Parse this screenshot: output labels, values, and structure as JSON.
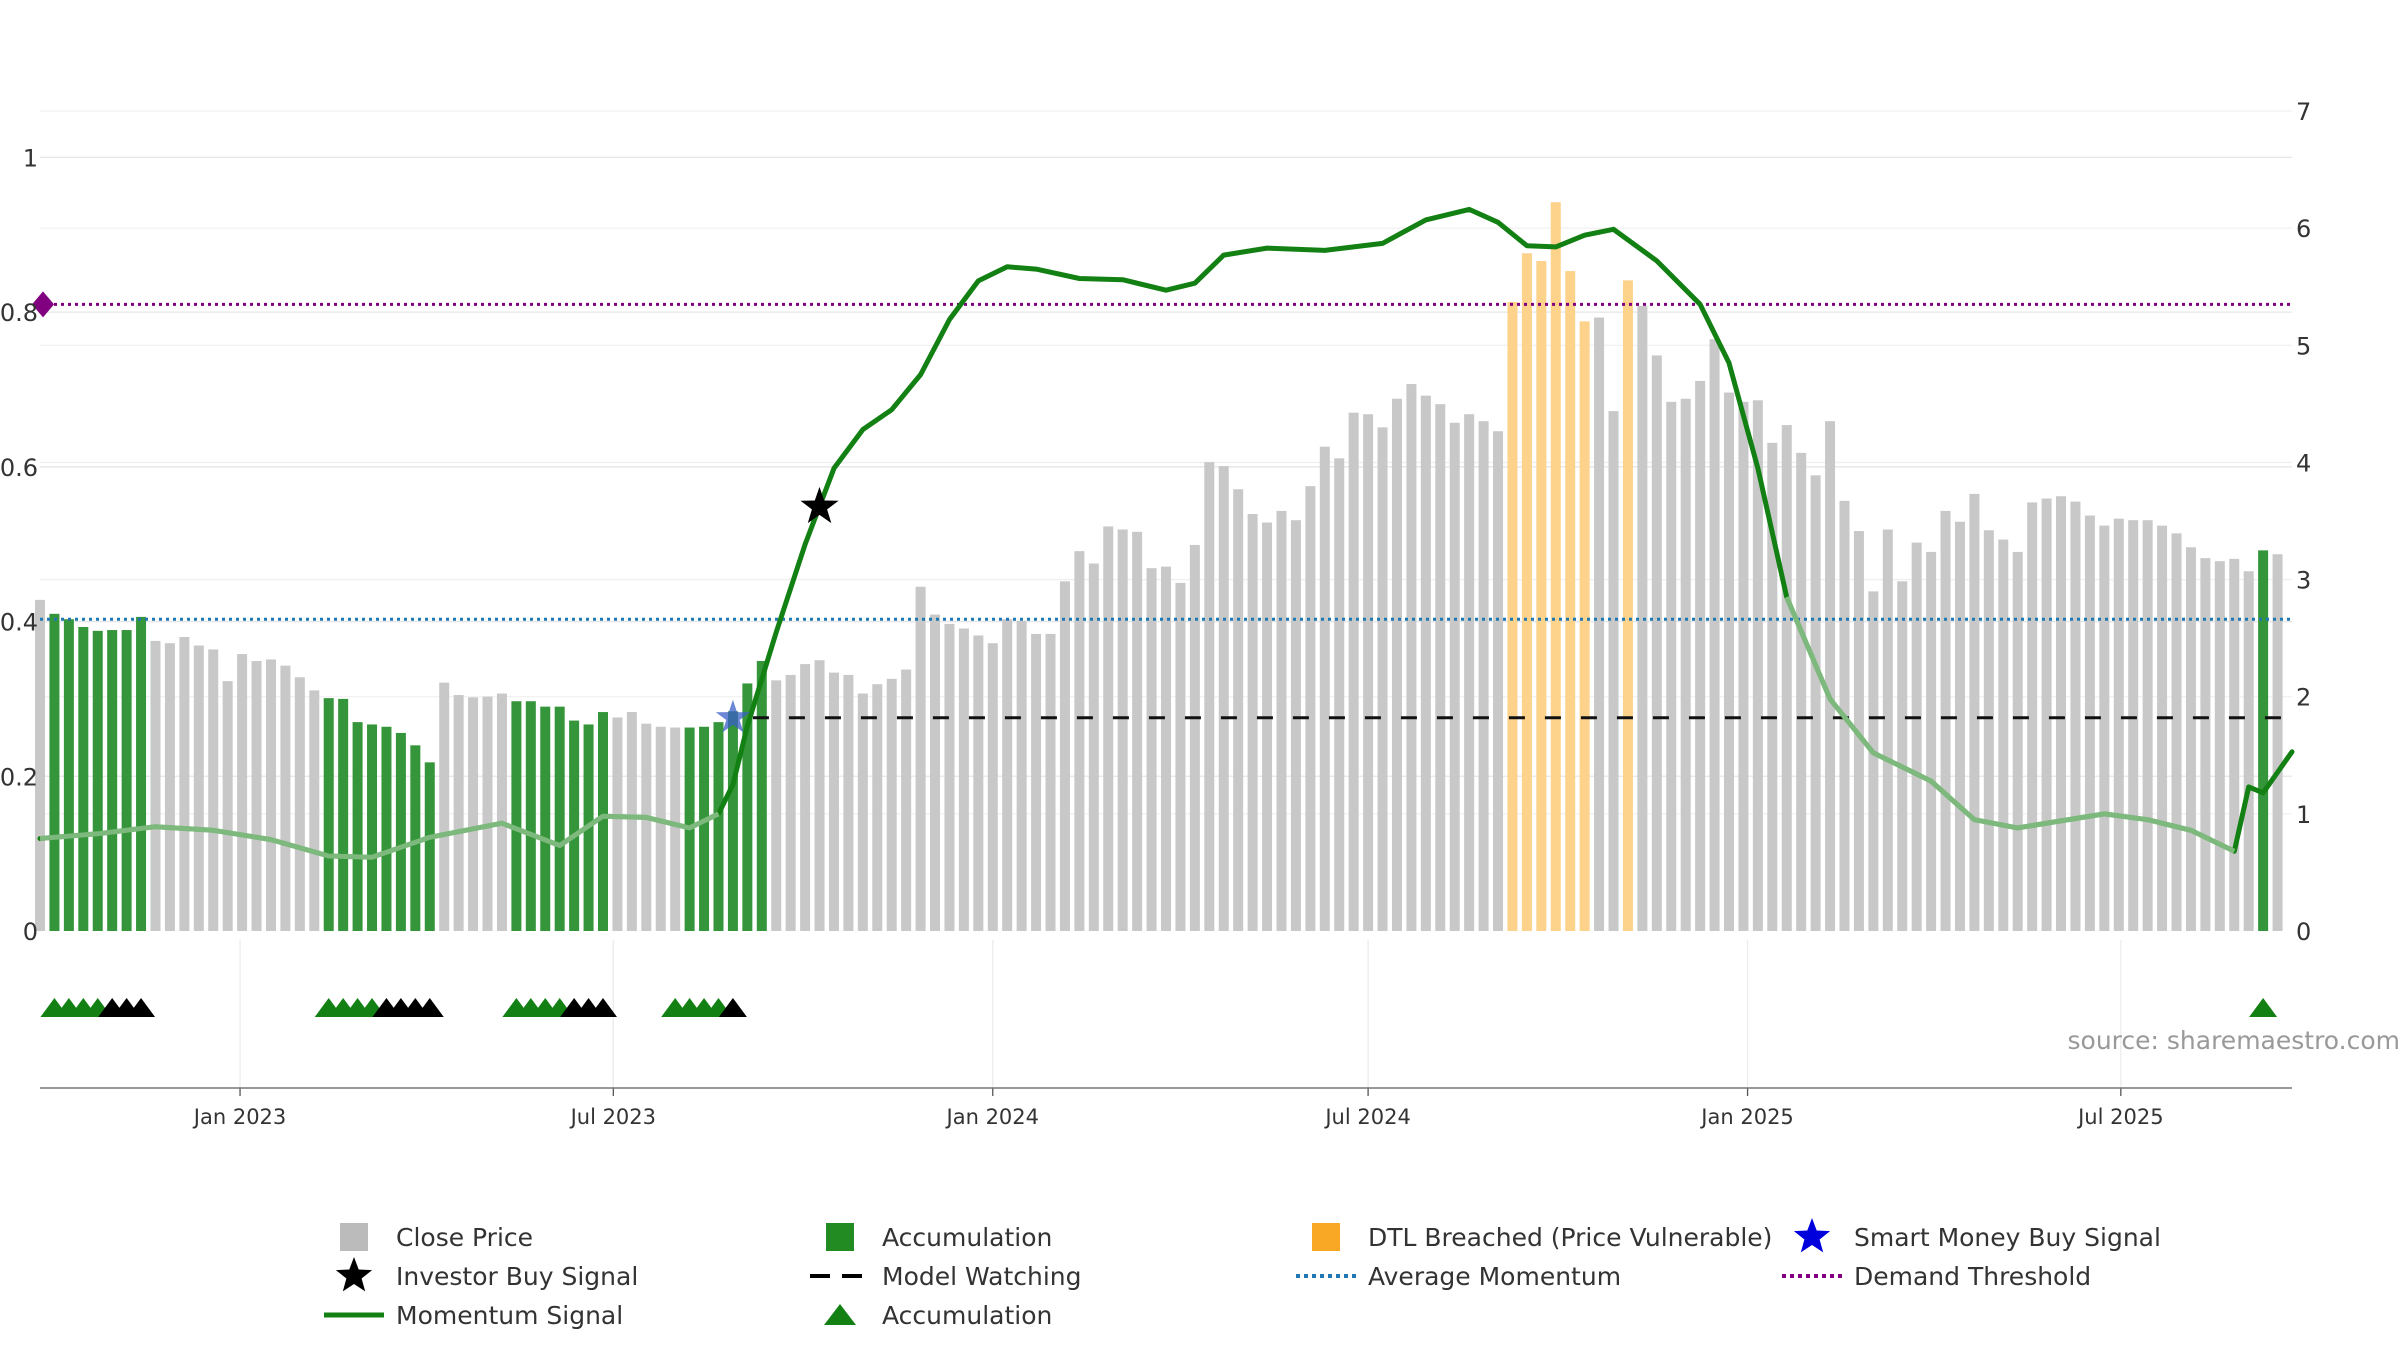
{
  "source": "source: sharemaestro.com",
  "chart_data": {
    "type": "bar",
    "title": "",
    "left_axis": {
      "ticks": [
        {
          "value": 0,
          "label": "0"
        },
        {
          "value": 0.2,
          "label": "0.2"
        },
        {
          "value": 0.4,
          "label": "0.4"
        },
        {
          "value": 0.6,
          "label": "0.6"
        },
        {
          "value": 0.8,
          "label": "0.8"
        },
        {
          "value": 1,
          "label": "1"
        }
      ],
      "ylim": [
        0,
        1.1
      ]
    },
    "right_axis": {
      "ticks": [
        {
          "value": 0,
          "label": "0"
        },
        {
          "value": 1,
          "label": "1"
        },
        {
          "value": 2,
          "label": "2"
        },
        {
          "value": 3,
          "label": "3"
        },
        {
          "value": 4,
          "label": "4"
        },
        {
          "value": 5,
          "label": "5"
        },
        {
          "value": 6,
          "label": "6"
        },
        {
          "value": 7,
          "label": "7"
        }
      ],
      "ylim": [
        0,
        7
      ]
    },
    "x_axis": {
      "start_date": "2022-09-26",
      "end_date": "2025-09-22",
      "ticks": [
        {
          "date": "2023-01-01",
          "label": "Jan 2023"
        },
        {
          "date": "2023-07-01",
          "label": "Jul 2023"
        },
        {
          "date": "2024-01-01",
          "label": "Jan 2024"
        },
        {
          "date": "2024-07-01",
          "label": "Jul 2024"
        },
        {
          "date": "2025-01-01",
          "label": "Jan 2025"
        },
        {
          "date": "2025-07-01",
          "label": "Jul 2025"
        }
      ]
    },
    "bars": {
      "start_date": "2022-09-26",
      "interval_days": 7,
      "values": [
        0.428,
        0.41,
        0.403,
        0.393,
        0.388,
        0.389,
        0.389,
        0.406,
        0.375,
        0.372,
        0.38,
        0.369,
        0.364,
        0.323,
        0.358,
        0.349,
        0.351,
        0.343,
        0.328,
        0.311,
        0.301,
        0.3,
        0.27,
        0.267,
        0.264,
        0.256,
        0.24,
        0.218,
        0.321,
        0.305,
        0.302,
        0.303,
        0.307,
        0.297,
        0.297,
        0.29,
        0.29,
        0.272,
        0.267,
        0.283,
        0.276,
        0.283,
        0.268,
        0.264,
        0.263,
        0.263,
        0.264,
        0.27,
        0.284,
        0.32,
        0.349,
        0.324,
        0.331,
        0.345,
        0.35,
        0.334,
        0.331,
        0.307,
        0.319,
        0.326,
        0.338,
        0.445,
        0.409,
        0.397,
        0.391,
        0.382,
        0.372,
        0.403,
        0.401,
        0.384,
        0.384,
        0.452,
        0.491,
        0.475,
        0.523,
        0.519,
        0.516,
        0.469,
        0.471,
        0.45,
        0.499,
        0.606,
        0.601,
        0.571,
        0.539,
        0.528,
        0.543,
        0.531,
        0.575,
        0.626,
        0.611,
        0.67,
        0.668,
        0.651,
        0.688,
        0.707,
        0.692,
        0.681,
        0.657,
        0.668,
        0.659,
        0.646,
        0.813,
        0.876,
        0.866,
        0.942,
        0.853,
        0.788,
        0.793,
        0.672,
        0.841,
        0.808,
        0.744,
        0.684,
        0.688,
        0.711,
        0.765,
        0.696,
        0.684,
        0.686,
        0.631,
        0.654,
        0.618,
        0.589,
        0.659,
        0.556,
        0.517,
        0.439,
        0.519,
        0.452,
        0.502,
        0.49,
        0.543,
        0.529,
        0.565,
        0.518,
        0.506,
        0.49,
        0.554,
        0.559,
        0.562,
        0.555,
        0.537,
        0.524,
        0.533,
        0.531,
        0.531,
        0.524,
        0.514,
        0.496,
        0.482,
        0.478,
        0.481,
        0.465,
        0.492,
        0.487
      ],
      "accumulation_ranges": [
        [
          1,
          7
        ],
        [
          20,
          27
        ],
        [
          33,
          39
        ],
        [
          45,
          50
        ],
        [
          154,
          154
        ]
      ],
      "dtl_breached_ranges": [
        [
          102,
          107
        ],
        [
          110,
          110
        ]
      ]
    },
    "momentum_signal": {
      "series": [
        [
          "2022-09-26",
          0.79
        ],
        [
          "2022-10-24",
          0.83
        ],
        [
          "2022-11-21",
          0.89
        ],
        [
          "2022-12-19",
          0.86
        ],
        [
          "2023-01-16",
          0.78
        ],
        [
          "2023-02-13",
          0.64
        ],
        [
          "2023-03-06",
          0.63
        ],
        [
          "2023-04-03",
          0.8
        ],
        [
          "2023-05-08",
          0.92
        ],
        [
          "2023-06-05",
          0.73
        ],
        [
          "2023-06-26",
          0.98
        ],
        [
          "2023-07-17",
          0.97
        ],
        [
          "2023-08-07",
          0.88
        ],
        [
          "2023-08-21",
          1.0
        ],
        [
          "2023-08-28",
          1.25
        ],
        [
          "2023-09-04",
          1.75
        ],
        [
          "2023-09-18",
          2.55
        ],
        [
          "2023-10-02",
          3.3
        ],
        [
          "2023-10-16",
          3.95
        ],
        [
          "2023-10-30",
          4.28
        ],
        [
          "2023-11-13",
          4.45
        ],
        [
          "2023-11-27",
          4.75
        ],
        [
          "2023-12-11",
          5.22
        ],
        [
          "2023-12-25",
          5.55
        ],
        [
          "2024-01-08",
          5.67
        ],
        [
          "2024-01-22",
          5.65
        ],
        [
          "2024-02-12",
          5.57
        ],
        [
          "2024-03-04",
          5.56
        ],
        [
          "2024-03-25",
          5.47
        ],
        [
          "2024-04-08",
          5.53
        ],
        [
          "2024-04-22",
          5.77
        ],
        [
          "2024-05-13",
          5.83
        ],
        [
          "2024-06-10",
          5.81
        ],
        [
          "2024-07-08",
          5.87
        ],
        [
          "2024-07-29",
          6.07
        ],
        [
          "2024-08-19",
          6.16
        ],
        [
          "2024-09-02",
          6.05
        ],
        [
          "2024-09-16",
          5.85
        ],
        [
          "2024-09-30",
          5.84
        ],
        [
          "2024-10-14",
          5.94
        ],
        [
          "2024-10-28",
          5.99
        ],
        [
          "2024-11-18",
          5.72
        ],
        [
          "2024-12-09",
          5.35
        ],
        [
          "2024-12-23",
          4.85
        ],
        [
          "2025-01-06",
          3.95
        ],
        [
          "2025-01-20",
          2.85
        ],
        [
          "2025-02-10",
          1.98
        ],
        [
          "2025-03-03",
          1.52
        ],
        [
          "2025-03-31",
          1.28
        ],
        [
          "2025-04-21",
          0.95
        ],
        [
          "2025-05-12",
          0.88
        ],
        [
          "2025-06-02",
          0.94
        ],
        [
          "2025-06-23",
          1.0
        ],
        [
          "2025-07-14",
          0.95
        ],
        [
          "2025-08-04",
          0.86
        ],
        [
          "2025-08-25",
          0.68
        ],
        [
          "2025-09-01",
          1.23
        ],
        [
          "2025-09-08",
          1.18
        ],
        [
          "2025-09-22",
          1.53
        ]
      ],
      "faded_ranges": [
        [
          "2022-09-26",
          "2023-08-21"
        ],
        [
          "2025-01-13",
          "2025-08-25"
        ]
      ]
    },
    "average_momentum": 0.403,
    "demand_threshold": 0.81,
    "model_watching": {
      "value_right": 1.82,
      "start_date": "2023-08-28",
      "end_date": "2025-09-22"
    },
    "smart_money_buy_signal": {
      "date": "2023-08-28",
      "value_right": 1.82
    },
    "investor_buy_signal": {
      "date": "2023-10-09",
      "value_right": 3.62
    },
    "accumulation_triangles": [
      {
        "date": "2022-10-03",
        "color": "green"
      },
      {
        "date": "2022-10-10",
        "color": "green"
      },
      {
        "date": "2022-10-17",
        "color": "green"
      },
      {
        "date": "2022-10-24",
        "color": "green"
      },
      {
        "date": "2022-10-31",
        "color": "black"
      },
      {
        "date": "2022-11-07",
        "color": "black"
      },
      {
        "date": "2022-11-14",
        "color": "black"
      },
      {
        "date": "2023-02-13",
        "color": "green"
      },
      {
        "date": "2023-02-20",
        "color": "green"
      },
      {
        "date": "2023-02-27",
        "color": "green"
      },
      {
        "date": "2023-03-06",
        "color": "green"
      },
      {
        "date": "2023-03-13",
        "color": "black"
      },
      {
        "date": "2023-03-20",
        "color": "black"
      },
      {
        "date": "2023-03-27",
        "color": "black"
      },
      {
        "date": "2023-04-03",
        "color": "black"
      },
      {
        "date": "2023-05-15",
        "color": "green"
      },
      {
        "date": "2023-05-22",
        "color": "green"
      },
      {
        "date": "2023-05-29",
        "color": "green"
      },
      {
        "date": "2023-06-05",
        "color": "green"
      },
      {
        "date": "2023-06-12",
        "color": "black"
      },
      {
        "date": "2023-06-19",
        "color": "black"
      },
      {
        "date": "2023-06-26",
        "color": "black"
      },
      {
        "date": "2023-07-31",
        "color": "green"
      },
      {
        "date": "2023-08-07",
        "color": "green"
      },
      {
        "date": "2023-08-14",
        "color": "green"
      },
      {
        "date": "2023-08-21",
        "color": "green"
      },
      {
        "date": "2023-08-28",
        "color": "black"
      },
      {
        "date": "2025-09-08",
        "color": "green"
      }
    ],
    "legend": [
      {
        "label": "Close Price",
        "symbol": "square",
        "color": "#bbbbbb"
      },
      {
        "label": "Accumulation",
        "symbol": "square",
        "color": "#228b22"
      },
      {
        "label": "DTL Breached (Price Vulnerable)",
        "symbol": "square",
        "color": "#f9a825"
      },
      {
        "label": "Smart Money Buy Signal",
        "symbol": "star",
        "color": "#0000dd"
      },
      {
        "label": "Investor Buy Signal",
        "symbol": "star",
        "color": "#000000"
      },
      {
        "label": "Model Watching",
        "symbol": "dash",
        "color": "#000000"
      },
      {
        "label": "Average Momentum",
        "symbol": "dotted",
        "color": "#1f77b4"
      },
      {
        "label": "Demand Threshold",
        "symbol": "dotted",
        "color": "#800080"
      },
      {
        "label": "Momentum Signal",
        "symbol": "line",
        "color": "#138013"
      },
      {
        "label": "Accumulation",
        "symbol": "triangle",
        "color": "#138013"
      }
    ],
    "colors": {
      "close_price": "#c8c8c8",
      "accumulation": "#35953a",
      "dtl": "#fdd28a",
      "momentum": "#138013",
      "avg_momentum": "#1f77b4",
      "demand": "#800080",
      "grid": "#e6e6e6"
    }
  }
}
